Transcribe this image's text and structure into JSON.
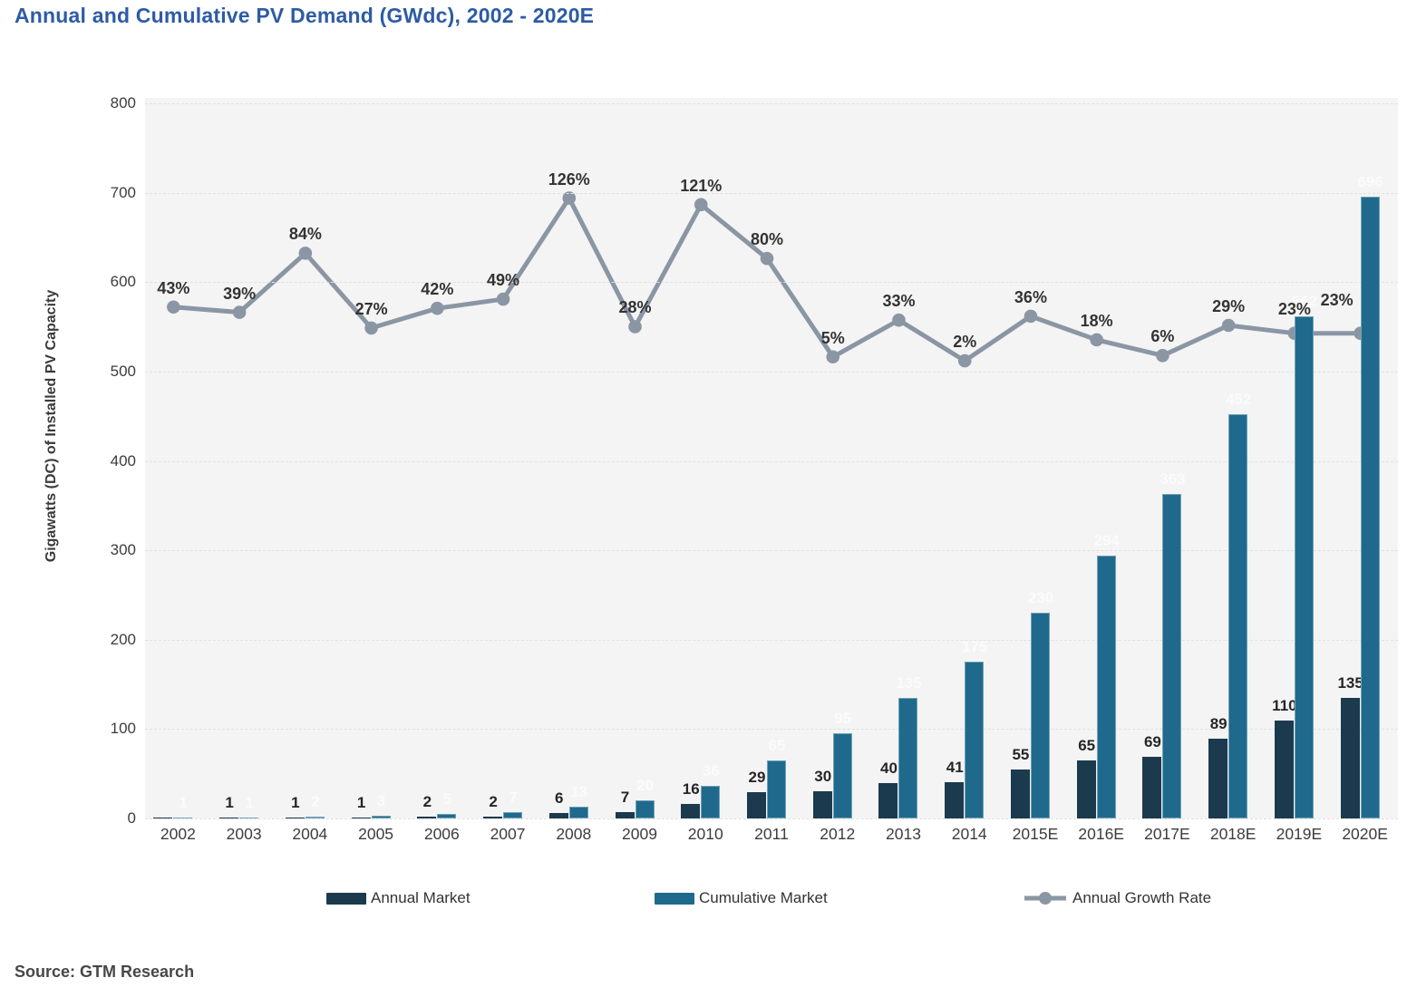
{
  "title": "Annual and Cumulative PV Demand (GWdc), 2002 - 2020E",
  "source_note": "Source: GTM Research",
  "legend": {
    "items": [
      {
        "label": "Annual Market",
        "swatch": "navy-bar"
      },
      {
        "label": "Cumulative Market",
        "swatch": "teal-bar"
      },
      {
        "label": "Annual Growth Rate",
        "swatch": "gray-line-dot"
      }
    ]
  },
  "colors": {
    "title_blue": "#2d5ba6",
    "annual_bar": "#1c3a4e",
    "cumulative_bar": "#1f6a8c",
    "growth_line": "#8a96a3",
    "plot_background": "#f4f4f5",
    "gridline": "#e1e1e1",
    "dark_label": "#262626",
    "light_label": "#fbfbfc"
  },
  "chart_data": {
    "type": "combo-bar-line",
    "title": "Annual and Cumulative PV Demand (GWdc), 2002 - 2020E",
    "xlabel": "",
    "ylabel": "Gigawatts (DC) of Installed PV Capacity",
    "ylim": [
      0,
      800
    ],
    "y_ticks": [
      0,
      100,
      200,
      300,
      400,
      500,
      600,
      700,
      800
    ],
    "grid": "horizontal-dashed",
    "legend_position": "bottom",
    "categories": [
      "2002",
      "2003",
      "2004",
      "2005",
      "2006",
      "2007",
      "2008",
      "2009",
      "2010",
      "2011",
      "2012",
      "2013",
      "2014",
      "2015E",
      "2016E",
      "2017E",
      "2018E",
      "2019E",
      "2020E"
    ],
    "series": [
      {
        "name": "Annual Market",
        "type": "bar",
        "color": "#1c3a4e",
        "values": [
          0.5,
          1,
          1,
          1,
          2,
          2,
          6,
          7,
          16,
          29,
          30,
          40,
          41,
          55,
          65,
          69,
          89,
          110,
          135
        ],
        "labels": [
          "",
          "1",
          "1",
          "1",
          "2",
          "2",
          "6",
          "7",
          "16",
          "29",
          "30",
          "40",
          "41",
          "55",
          "65",
          "69",
          "89",
          "110",
          "135"
        ]
      },
      {
        "name": "Cumulative Market",
        "type": "bar",
        "color": "#1f6a8c",
        "values": [
          1,
          1,
          2,
          3,
          5,
          7,
          13,
          20,
          36,
          65,
          95,
          135,
          175,
          230,
          294,
          363,
          452,
          562,
          696
        ],
        "labels": [
          "1",
          "1",
          "2",
          "3",
          "5",
          "7",
          "13",
          "20",
          "36",
          "65",
          "95",
          "135",
          "175",
          "230",
          "294",
          "363",
          "452",
          "562",
          "696"
        ]
      },
      {
        "name": "Annual Growth Rate",
        "type": "line",
        "unit": "%",
        "color": "#8a96a3",
        "values": [
          43,
          39,
          84,
          27,
          42,
          49,
          126,
          28,
          121,
          80,
          5,
          33,
          2,
          36,
          18,
          6,
          29,
          23,
          23
        ],
        "labels": [
          "43%",
          "39%",
          "84%",
          "27%",
          "42%",
          "49%",
          "126%",
          "28%",
          "121%",
          "80%",
          "5%",
          "33%",
          "2%",
          "36%",
          "18%",
          "6%",
          "29%",
          "23%",
          "23%"
        ]
      }
    ],
    "secondary_axis_hint": {
      "gw_equivalent_at_0pct": 509,
      "gw_per_percent": 1.468
    }
  }
}
